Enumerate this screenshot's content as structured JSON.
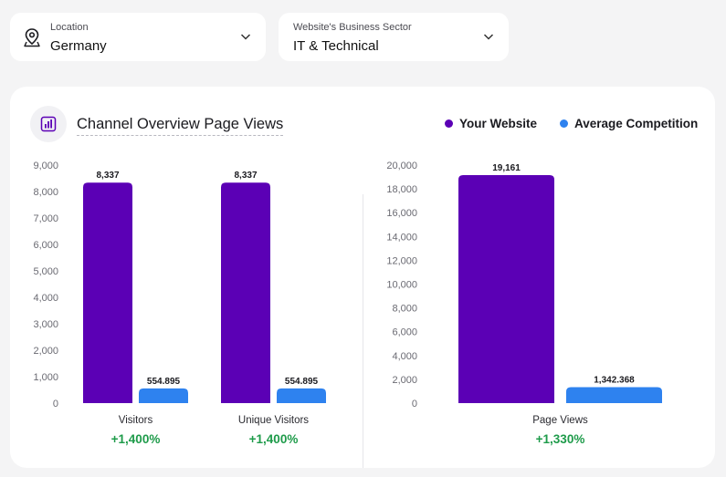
{
  "filters": {
    "location": {
      "label": "Location",
      "value": "Germany",
      "icon": "location-pin-icon"
    },
    "sector": {
      "label": "Website's Business Sector",
      "value": "IT & Technical"
    }
  },
  "card": {
    "title": "Channel Overview Page Views",
    "icon": "bar-chart-icon",
    "legend": [
      {
        "name": "Your Website",
        "color": "#5b00b5"
      },
      {
        "name": "Average Competition",
        "color": "#2e82ef"
      }
    ]
  },
  "chart_data": [
    {
      "type": "bar",
      "categories": [
        "Visitors",
        "Unique Visitors"
      ],
      "series": [
        {
          "name": "Your Website",
          "values": [
            8337,
            8337
          ],
          "labels": [
            "8,337",
            "8,337"
          ]
        },
        {
          "name": "Average Competition",
          "values": [
            554.895,
            554.895
          ],
          "labels": [
            "554.895",
            "554.895"
          ]
        }
      ],
      "growth": [
        "+1,400%",
        "+1,400%"
      ],
      "ylim": [
        0,
        9000
      ],
      "yticks": [
        0,
        1000,
        2000,
        3000,
        4000,
        5000,
        6000,
        7000,
        8000,
        9000
      ],
      "ytick_labels": [
        "0",
        "1,000",
        "2,000",
        "3,000",
        "4,000",
        "5,000",
        "6,000",
        "7,000",
        "8,000",
        "9,000"
      ],
      "legend": "top-right",
      "grid": false
    },
    {
      "type": "bar",
      "categories": [
        "Page Views"
      ],
      "series": [
        {
          "name": "Your Website",
          "values": [
            19161
          ],
          "labels": [
            "19,161"
          ]
        },
        {
          "name": "Average Competition",
          "values": [
            1342.368
          ],
          "labels": [
            "1,342.368"
          ]
        }
      ],
      "growth": [
        "+1,330%"
      ],
      "ylim": [
        0,
        20000
      ],
      "yticks": [
        0,
        2000,
        4000,
        6000,
        8000,
        10000,
        12000,
        14000,
        16000,
        18000,
        20000
      ],
      "ytick_labels": [
        "0",
        "2,000",
        "4,000",
        "6,000",
        "8,000",
        "10,000",
        "12,000",
        "14,000",
        "16,000",
        "18,000",
        "20,000"
      ],
      "legend": "top-right",
      "grid": false
    }
  ]
}
